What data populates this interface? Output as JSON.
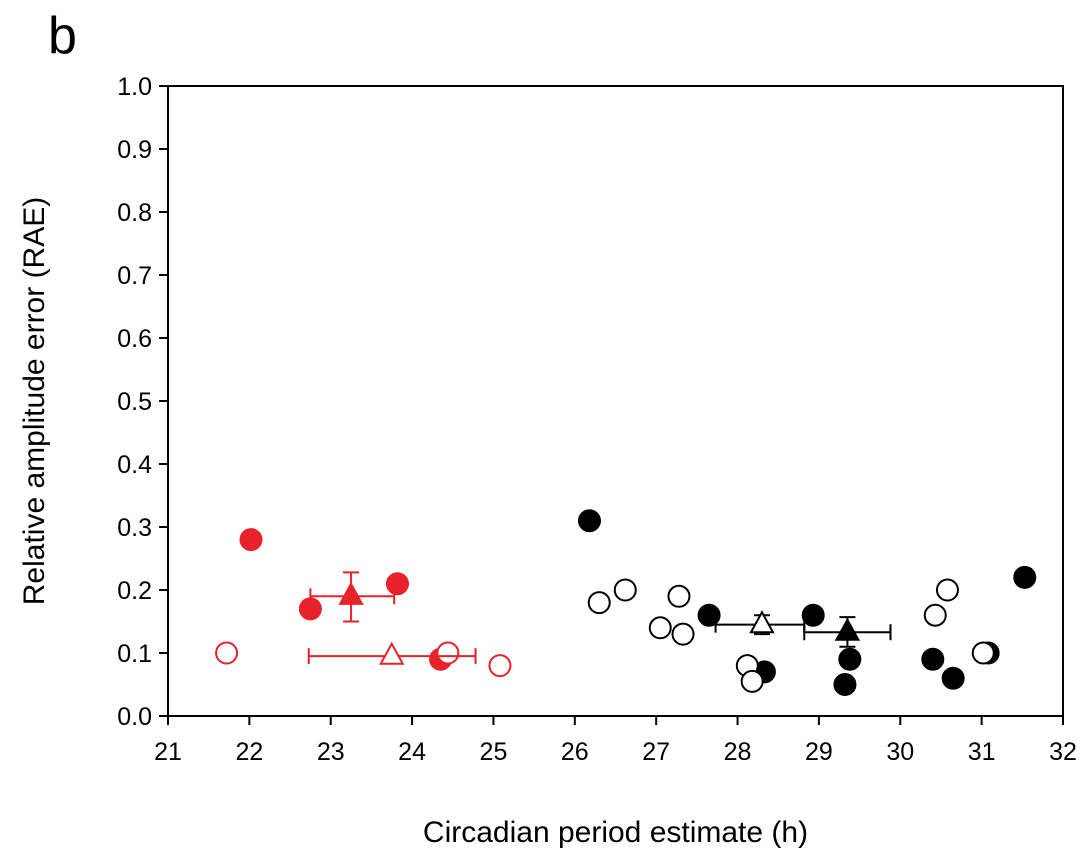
{
  "panel_label": "b",
  "chart_data": {
    "type": "scatter",
    "title": "",
    "xlabel": "Circadian period estimate (h)",
    "ylabel": "Relative amplitude error (RAE)",
    "xlim": [
      21,
      32
    ],
    "ylim": [
      0.0,
      1.0
    ],
    "x_ticks": [
      21,
      22,
      23,
      24,
      25,
      26,
      27,
      28,
      29,
      30,
      31,
      32
    ],
    "x_tick_labels": [
      "21",
      "22",
      "23",
      "24",
      "25",
      "26",
      "27",
      "28",
      "29",
      "30",
      "31",
      "32"
    ],
    "y_ticks": [
      0.0,
      0.1,
      0.2,
      0.3,
      0.4,
      0.5,
      0.6,
      0.7,
      0.8,
      0.9,
      1.0
    ],
    "y_tick_labels": [
      "0.0",
      "0.1",
      "0.2",
      "0.3",
      "0.4",
      "0.5",
      "0.6",
      "0.7",
      "0.8",
      "0.9",
      "1.0"
    ],
    "grid": false,
    "colors": {
      "red": "#e8222a",
      "black": "#000000"
    },
    "series": [
      {
        "color": "#e8222a",
        "marker": "circle",
        "filled": true,
        "points": [
          [
            22.02,
            0.28
          ],
          [
            22.75,
            0.17
          ],
          [
            23.82,
            0.21
          ],
          [
            24.35,
            0.09
          ]
        ]
      },
      {
        "color": "#e8222a",
        "marker": "circle",
        "filled": false,
        "points": [
          [
            21.72,
            0.1
          ],
          [
            24.44,
            0.1
          ],
          [
            25.08,
            0.08
          ]
        ]
      },
      {
        "color": "#000000",
        "marker": "circle",
        "filled": true,
        "points": [
          [
            26.18,
            0.31
          ],
          [
            27.65,
            0.16
          ],
          [
            28.33,
            0.07
          ],
          [
            28.93,
            0.16
          ],
          [
            29.32,
            0.05
          ],
          [
            29.38,
            0.09
          ],
          [
            30.4,
            0.09
          ],
          [
            30.65,
            0.06
          ],
          [
            31.08,
            0.1
          ],
          [
            31.53,
            0.22
          ]
        ]
      },
      {
        "color": "#000000",
        "marker": "circle",
        "filled": false,
        "points": [
          [
            26.3,
            0.18
          ],
          [
            26.62,
            0.2
          ],
          [
            27.05,
            0.14
          ],
          [
            27.28,
            0.19
          ],
          [
            27.33,
            0.13
          ],
          [
            28.12,
            0.08
          ],
          [
            28.18,
            0.055
          ],
          [
            30.43,
            0.16
          ],
          [
            30.58,
            0.2
          ],
          [
            31.02,
            0.1
          ]
        ]
      }
    ],
    "means": [
      {
        "color": "#e8222a",
        "marker": "triangle",
        "filled": true,
        "x": 23.25,
        "y": 0.19,
        "xerr": [
          22.75,
          23.78
        ],
        "yerr": [
          0.15,
          0.228
        ]
      },
      {
        "color": "#e8222a",
        "marker": "triangle",
        "filled": false,
        "x": 23.75,
        "y": 0.095,
        "xerr": [
          22.73,
          24.78
        ],
        "yerr": [
          0.095,
          0.095
        ]
      },
      {
        "color": "#000000",
        "marker": "triangle",
        "filled": false,
        "x": 28.3,
        "y": 0.145,
        "xerr": [
          27.73,
          28.82
        ],
        "yerr": [
          0.13,
          0.16
        ]
      },
      {
        "color": "#000000",
        "marker": "triangle",
        "filled": true,
        "x": 29.35,
        "y": 0.133,
        "xerr": [
          28.82,
          29.88
        ],
        "yerr": [
          0.11,
          0.157
        ]
      }
    ]
  }
}
